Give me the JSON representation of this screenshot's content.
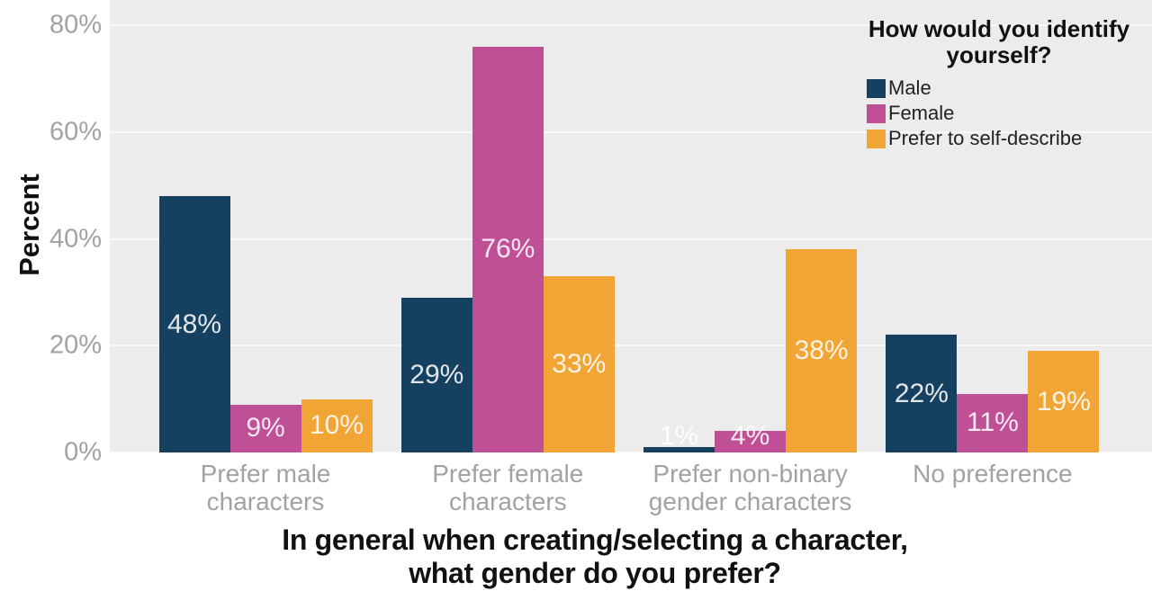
{
  "chart_data": {
    "type": "bar",
    "title": "In general when creating/selecting a character, what gender do you prefer?",
    "title_lines": [
      "In general when creating/selecting a character,",
      "what gender do you prefer?"
    ],
    "ylabel": "Percent",
    "ylim": [
      0,
      80
    ],
    "yticks": [
      {
        "value": 0,
        "label": "0%"
      },
      {
        "value": 20,
        "label": "20%"
      },
      {
        "value": 40,
        "label": "40%"
      },
      {
        "value": 60,
        "label": "60%"
      },
      {
        "value": 80,
        "label": "80%"
      }
    ],
    "grid": "horizontal-major-white",
    "panel_bg": "#ececec",
    "axis_text_color": "#a2a2a2",
    "legend_title": "How would you identify yourself?",
    "legend_title_lines": [
      "How would you identify",
      "yourself?"
    ],
    "legend_position": "top-right-inside",
    "categories": [
      "Prefer male characters",
      "Prefer female characters",
      "Prefer non-binary gender characters",
      "No preference"
    ],
    "category_label_lines": [
      [
        "Prefer male",
        "characters"
      ],
      [
        "Prefer female",
        "characters"
      ],
      [
        "Prefer non-binary",
        "gender characters"
      ],
      [
        "No preference"
      ]
    ],
    "series": [
      {
        "name": "Male",
        "color": "#164060",
        "values": [
          48,
          29,
          1,
          22
        ]
      },
      {
        "name": "Female",
        "color": "#c05096",
        "values": [
          9,
          76,
          4,
          11
        ]
      },
      {
        "name": "Prefer to self-describe",
        "color": "#f1a535",
        "values": [
          10,
          33,
          38,
          19
        ]
      }
    ],
    "value_label_suffix": "%"
  }
}
